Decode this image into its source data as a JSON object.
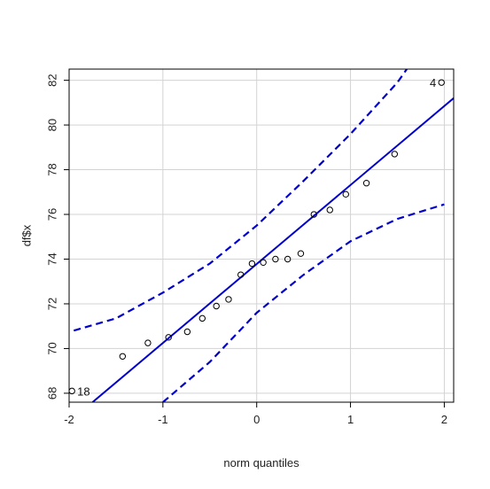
{
  "chart_data": {
    "type": "scatter",
    "title": "",
    "xlabel": "norm quantiles",
    "ylabel": "df$x",
    "xlim": [
      -2.0,
      2.1
    ],
    "ylim": [
      67.6,
      82.5
    ],
    "xticks": [
      -2,
      -1,
      0,
      1,
      2
    ],
    "yticks": [
      68,
      70,
      72,
      74,
      76,
      78,
      80,
      82
    ],
    "grid": true,
    "legend": "none",
    "colors": {
      "reference_line": "#0000cc",
      "envelope": "#0000cc",
      "points": "#000000",
      "grid": "#d3d3d3",
      "frame": "#000000"
    },
    "points": [
      {
        "x": -1.97,
        "y": 68.1
      },
      {
        "x": -1.43,
        "y": 69.65
      },
      {
        "x": -1.16,
        "y": 70.25
      },
      {
        "x": -0.94,
        "y": 70.5
      },
      {
        "x": -0.74,
        "y": 70.75
      },
      {
        "x": -0.58,
        "y": 71.35
      },
      {
        "x": -0.43,
        "y": 71.9
      },
      {
        "x": -0.3,
        "y": 72.2
      },
      {
        "x": -0.17,
        "y": 73.3
      },
      {
        "x": -0.05,
        "y": 73.8
      },
      {
        "x": 0.07,
        "y": 73.85
      },
      {
        "x": 0.2,
        "y": 74.0
      },
      {
        "x": 0.33,
        "y": 74.0
      },
      {
        "x": 0.47,
        "y": 74.25
      },
      {
        "x": 0.61,
        "y": 76.0
      },
      {
        "x": 0.78,
        "y": 76.2
      },
      {
        "x": 0.95,
        "y": 76.9
      },
      {
        "x": 1.17,
        "y": 77.4
      },
      {
        "x": 1.47,
        "y": 78.7
      },
      {
        "x": 1.97,
        "y": 81.9
      }
    ],
    "reference_line": [
      {
        "x": -1.75,
        "y": 67.6
      },
      {
        "x": 2.1,
        "y": 81.2
      }
    ],
    "upper_envelope": [
      {
        "x": -1.95,
        "y": 70.8
      },
      {
        "x": -1.5,
        "y": 71.35
      },
      {
        "x": -1.0,
        "y": 72.5
      },
      {
        "x": -0.5,
        "y": 73.8
      },
      {
        "x": 0.0,
        "y": 75.5
      },
      {
        "x": 0.5,
        "y": 77.5
      },
      {
        "x": 1.0,
        "y": 79.6
      },
      {
        "x": 1.5,
        "y": 81.9
      },
      {
        "x": 1.6,
        "y": 82.5
      }
    ],
    "lower_envelope": [
      {
        "x": -1.0,
        "y": 67.6
      },
      {
        "x": -0.5,
        "y": 69.4
      },
      {
        "x": 0.0,
        "y": 71.6
      },
      {
        "x": 0.5,
        "y": 73.3
      },
      {
        "x": 1.0,
        "y": 74.8
      },
      {
        "x": 1.5,
        "y": 75.8
      },
      {
        "x": 2.0,
        "y": 76.45
      }
    ],
    "labels": [
      {
        "text": "4",
        "x": 1.97,
        "y": 81.9,
        "side": "left"
      },
      {
        "text": "18",
        "x": -1.97,
        "y": 68.1,
        "side": "right"
      }
    ]
  }
}
